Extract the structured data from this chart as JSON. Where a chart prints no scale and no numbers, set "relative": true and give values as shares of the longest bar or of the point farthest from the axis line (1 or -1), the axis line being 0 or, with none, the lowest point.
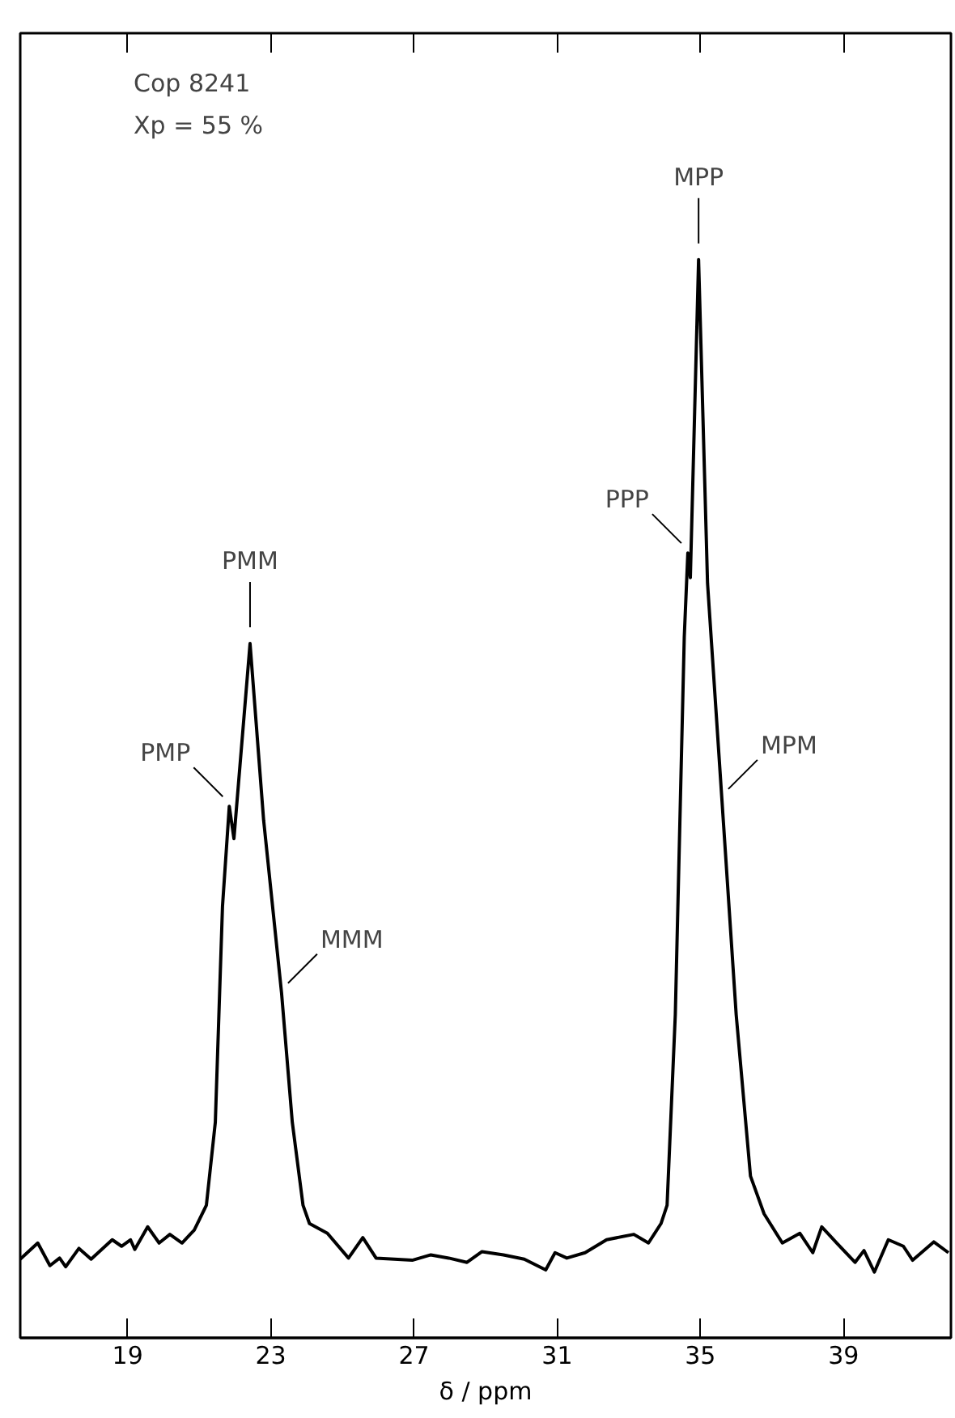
{
  "chart_data": {
    "type": "line",
    "relative": true,
    "xlabel": "δ / ppm",
    "xlim": [
      16,
      42
    ],
    "xticks": [
      19,
      23,
      27,
      31,
      35,
      39
    ],
    "tick_labels": "x",
    "grid": false,
    "marker": "none",
    "line_style": "solid",
    "series": [
      {
        "color": "#000000",
        "x": [
          16.0,
          16.49,
          16.83,
          17.1,
          17.27,
          17.64,
          17.98,
          18.57,
          18.83,
          19.08,
          19.2,
          19.56,
          19.88,
          20.18,
          20.52,
          20.86,
          21.2,
          21.45,
          21.65,
          21.84,
          21.97,
          22.42,
          22.8,
          23.3,
          23.6,
          23.9,
          24.08,
          24.58,
          25.17,
          25.57,
          25.94,
          26.95,
          27.47,
          27.97,
          28.48,
          28.9,
          29.5,
          30.08,
          30.68,
          30.94,
          31.27,
          31.78,
          32.38,
          33.14,
          33.55,
          33.9,
          34.07,
          34.3,
          34.55,
          34.65,
          34.72,
          34.95,
          35.2,
          35.6,
          36.0,
          36.4,
          36.78,
          37.29,
          37.78,
          38.14,
          38.39,
          38.81,
          39.32,
          39.57,
          39.86,
          40.25,
          40.67,
          40.93,
          41.52,
          41.93
        ],
        "values": [
          0.073,
          0.088,
          0.067,
          0.074,
          0.066,
          0.083,
          0.073,
          0.091,
          0.085,
          0.091,
          0.082,
          0.103,
          0.088,
          0.096,
          0.088,
          0.1,
          0.123,
          0.2,
          0.4,
          0.493,
          0.463,
          0.644,
          0.48,
          0.32,
          0.2,
          0.123,
          0.106,
          0.097,
          0.074,
          0.093,
          0.074,
          0.072,
          0.077,
          0.074,
          0.07,
          0.08,
          0.077,
          0.073,
          0.063,
          0.079,
          0.074,
          0.079,
          0.091,
          0.096,
          0.088,
          0.106,
          0.123,
          0.3,
          0.65,
          0.728,
          0.705,
          1.0,
          0.7,
          0.5,
          0.3,
          0.15,
          0.115,
          0.088,
          0.097,
          0.079,
          0.103,
          0.088,
          0.07,
          0.081,
          0.061,
          0.091,
          0.085,
          0.072,
          0.089,
          0.079
        ]
      }
    ],
    "annotations": [
      "Cop 8241",
      "Xp = 55 %",
      {
        "text": "PMP",
        "x": 21.84,
        "y": 0.493
      },
      {
        "text": "PMM",
        "x": 22.42,
        "y": 0.644
      },
      {
        "text": "MMM",
        "x": 23.3,
        "y": 0.32
      },
      {
        "text": "PPP",
        "x": 34.65,
        "y": 0.728
      },
      {
        "text": "MPP",
        "x": 34.95,
        "y": 1.0
      },
      {
        "text": "MPM",
        "x": 35.6,
        "y": 0.5
      }
    ]
  }
}
